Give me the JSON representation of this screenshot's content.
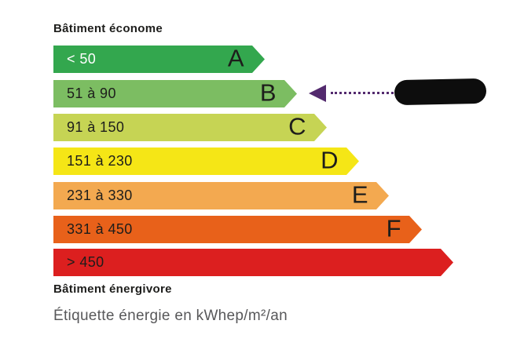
{
  "labels": {
    "top": "Bâtiment économe",
    "bottom": "Bâtiment énergivore",
    "caption": "Étiquette énergie en kWhep/m²/an"
  },
  "pointer": {
    "arrow_color": "#532a6e",
    "dotted_line_color": "#532a6e",
    "redaction_color": "#0d0d0d",
    "points_to_band": "B"
  },
  "chart_data": {
    "type": "bar",
    "orientation": "horizontal",
    "title": "Étiquette énergie en kWhep/m²/an",
    "unit": "kWhep/m²/an",
    "selected_band": "B",
    "value_redacted": true,
    "bands": [
      {
        "letter": "A",
        "range": "< 50",
        "max": 50,
        "color": "#33a74e",
        "range_text_color": "#ffffff"
      },
      {
        "letter": "B",
        "range": "51 à 90",
        "min": 51,
        "max": 90,
        "color": "#7cbd62",
        "range_text_color": "#1d1d1b",
        "selected": true
      },
      {
        "letter": "C",
        "range": "91 à 150",
        "min": 91,
        "max": 150,
        "color": "#c6d454",
        "range_text_color": "#1d1d1b"
      },
      {
        "letter": "D",
        "range": "151 à 230",
        "min": 151,
        "max": 230,
        "color": "#f5e616",
        "range_text_color": "#1d1d1b"
      },
      {
        "letter": "E",
        "range": "231 à 330",
        "min": 231,
        "max": 330,
        "color": "#f3a950",
        "range_text_color": "#1d1d1b"
      },
      {
        "letter": "F",
        "range": "331 à 450",
        "min": 331,
        "max": 450,
        "color": "#e8611a",
        "range_text_color": "#1d1d1b"
      },
      {
        "letter": "",
        "range": "> 450",
        "min": 451,
        "color": "#dc1f1f",
        "range_text_color": "#1d1d1b"
      }
    ]
  }
}
